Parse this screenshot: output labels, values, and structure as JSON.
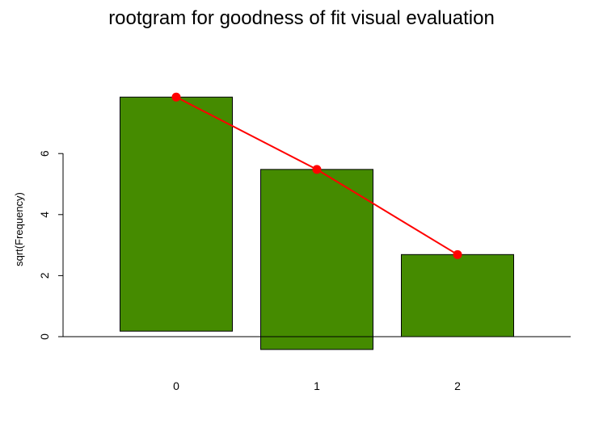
{
  "chart_data": {
    "type": "bar",
    "title": "rootgram for goodness of fit visual evaluation",
    "xlabel": "",
    "ylabel": "sqrt(Frequency)",
    "categories": [
      "0",
      "1",
      "2"
    ],
    "bars": [
      {
        "category": "0",
        "top": 7.85,
        "bottom": 0.18
      },
      {
        "category": "1",
        "top": 5.48,
        "bottom": -0.42
      },
      {
        "category": "2",
        "top": 2.69,
        "bottom": 0.0
      }
    ],
    "fitted": {
      "x": [
        "0",
        "1",
        "2"
      ],
      "values": [
        7.85,
        5.48,
        2.69
      ]
    },
    "yticks": [
      0,
      2,
      4,
      6
    ],
    "ylim": [
      -0.6,
      8.0
    ],
    "reference_line": 0,
    "grid": false,
    "colors": {
      "bar_fill": "#458B00",
      "bar_stroke": "#000000",
      "fitted_line": "#FF0000",
      "fitted_point": "#FF0000"
    }
  }
}
